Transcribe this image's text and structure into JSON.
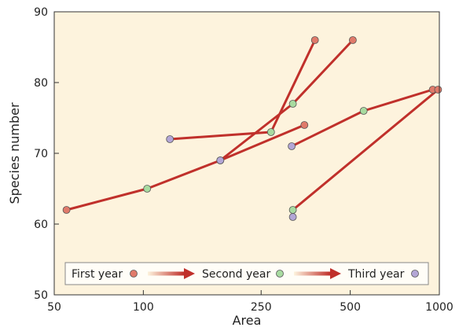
{
  "chart_data": {
    "type": "line",
    "title": "",
    "xlabel": "Area",
    "ylabel": "Species number",
    "x_scale": "log",
    "xlim": [
      50,
      1000
    ],
    "ylim": [
      50,
      90
    ],
    "x_ticks": [
      50,
      100,
      250,
      500,
      1000
    ],
    "x_tick_labels": [
      "50",
      "100",
      "250",
      "500",
      "1000"
    ],
    "y_ticks": [
      50,
      60,
      70,
      80,
      90
    ],
    "y_tick_labels": [
      "50",
      "60",
      "70",
      "80",
      "90"
    ],
    "grid": false,
    "legend_position": "bottom",
    "legend": [
      {
        "label": "First year",
        "color": "#e07a6a"
      },
      {
        "label": "Second year",
        "color": "#a8dba0"
      },
      {
        "label": "Third year",
        "color": "#b3a6d6"
      }
    ],
    "colors": {
      "background": "#fdf3dd",
      "line": "#c0302b",
      "first_year": "#e07a6a",
      "second_year": "#a8dba0",
      "third_year": "#b3a6d6"
    },
    "series": [
      {
        "points": [
          {
            "x": 55,
            "y": 62,
            "year": "first"
          },
          {
            "x": 103,
            "y": 65,
            "year": "second"
          },
          {
            "x": 182,
            "y": 69,
            "year": "third"
          },
          {
            "x": 350,
            "y": 74,
            "year": "first"
          }
        ]
      },
      {
        "points": [
          {
            "x": 182,
            "y": 69,
            "year": "third"
          },
          {
            "x": 320,
            "y": 77,
            "year": "second"
          },
          {
            "x": 510,
            "y": 86,
            "year": "first"
          }
        ]
      },
      {
        "points": [
          {
            "x": 123,
            "y": 72,
            "year": "third"
          },
          {
            "x": 270,
            "y": 73,
            "year": "second"
          },
          {
            "x": 380,
            "y": 86,
            "year": "first"
          }
        ]
      },
      {
        "points": [
          {
            "x": 317,
            "y": 71,
            "year": "third"
          },
          {
            "x": 555,
            "y": 76,
            "year": "second"
          },
          {
            "x": 950,
            "y": 79,
            "year": "first"
          }
        ]
      },
      {
        "points": [
          {
            "x": 320,
            "y": 61,
            "year": "third"
          },
          {
            "x": 320,
            "y": 62,
            "year": "second"
          },
          {
            "x": 990,
            "y": 79,
            "year": "first"
          }
        ]
      }
    ]
  }
}
